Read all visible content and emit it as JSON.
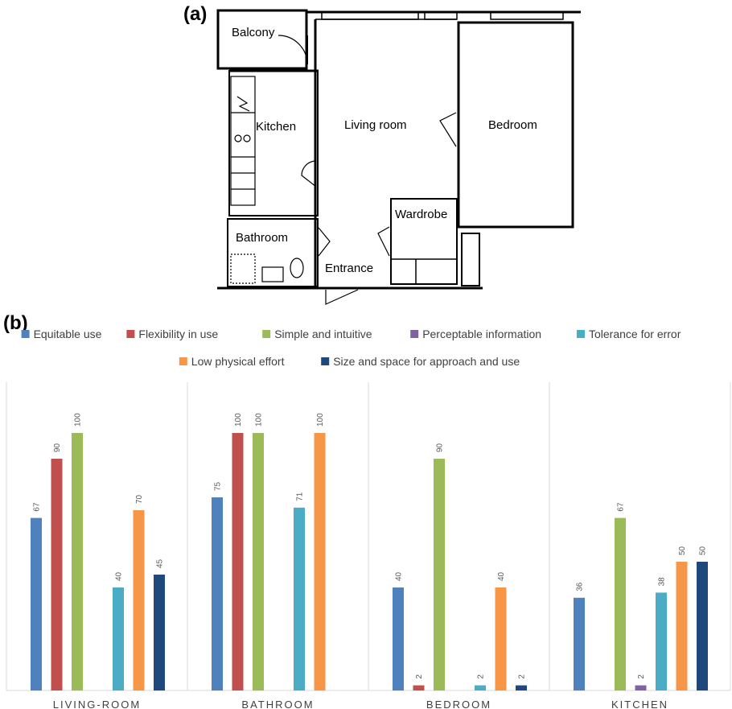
{
  "panels": {
    "a": "(a)",
    "b": "(b)"
  },
  "floorplan": {
    "rooms": {
      "balcony": "Balcony",
      "kitchen": "Kitchen",
      "living_room": "Living room",
      "bedroom": "Bedroom",
      "wardrobe": "Wardrobe",
      "bathroom": "Bathroom",
      "entrance": "Entrance"
    }
  },
  "chart_data": {
    "type": "bar",
    "categories": [
      "LIVING-ROOM",
      "BATHROOM",
      "BEDROOM",
      "KITCHEN"
    ],
    "ylim": [
      0,
      100
    ],
    "grid": false,
    "legend_position": "top",
    "series": [
      {
        "name": "Equitable use",
        "color": "#4F81BD",
        "values": [
          67,
          75,
          40,
          36
        ]
      },
      {
        "name": "Flexibility in use",
        "color": "#C0504D",
        "values": [
          90,
          100,
          2,
          null
        ]
      },
      {
        "name": "Simple and intuitive",
        "color": "#9BBB59",
        "values": [
          100,
          100,
          90,
          67
        ]
      },
      {
        "name": "Perceptable information",
        "color": "#8064A2",
        "values": [
          null,
          null,
          null,
          2
        ]
      },
      {
        "name": "Tolerance for error",
        "color": "#4BACC6",
        "values": [
          40,
          71,
          2,
          38
        ]
      },
      {
        "name": "Low physical effort",
        "color": "#F79646",
        "values": [
          70,
          100,
          40,
          50
        ]
      },
      {
        "name": "Size and space for approach and use",
        "color": "#1F497D",
        "values": [
          45,
          null,
          2,
          50
        ]
      }
    ]
  }
}
